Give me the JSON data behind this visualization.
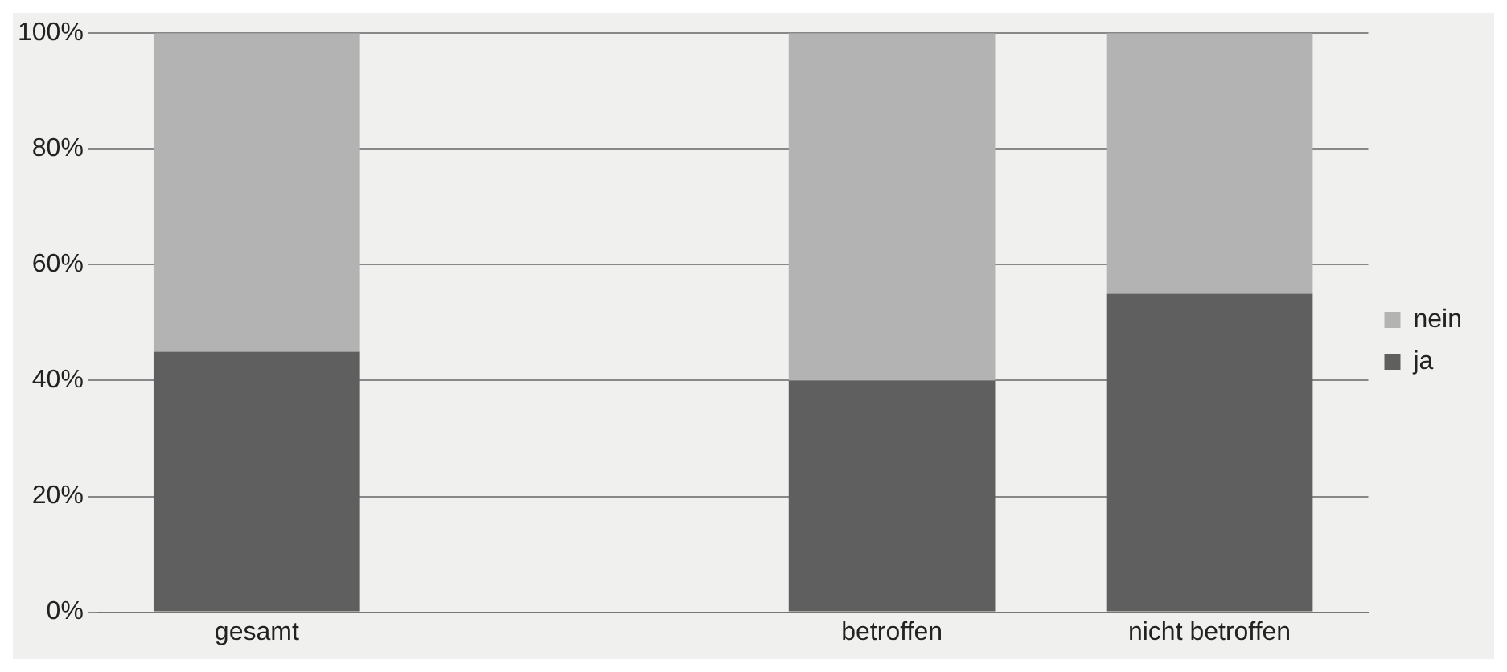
{
  "chart_data": {
    "type": "bar",
    "stacked": true,
    "categories": [
      "gesamt",
      null,
      "betroffen",
      "nicht betroffen"
    ],
    "series": [
      {
        "name": "ja",
        "color": "#5f5f5f",
        "values": [
          45,
          null,
          40,
          55
        ]
      },
      {
        "name": "nein",
        "color": "#b3b3b3",
        "values": [
          55,
          null,
          60,
          45
        ]
      }
    ],
    "ylim": [
      0,
      100
    ],
    "yticks": [
      {
        "value": 0,
        "label": "0%"
      },
      {
        "value": 20,
        "label": "20%"
      },
      {
        "value": 40,
        "label": "40%"
      },
      {
        "value": 60,
        "label": "60%"
      },
      {
        "value": 80,
        "label": "80%"
      },
      {
        "value": 100,
        "label": "100%"
      }
    ],
    "grid": "y",
    "legend": "right"
  }
}
